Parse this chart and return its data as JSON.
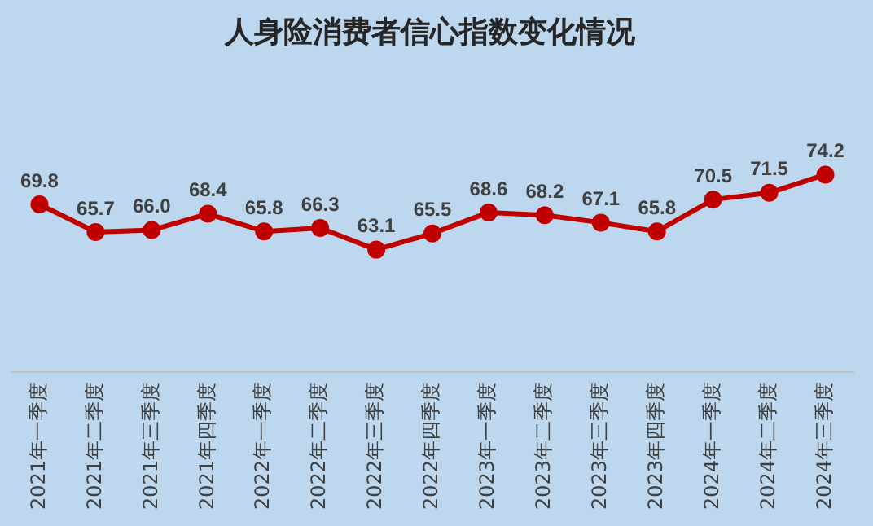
{
  "chart_data": {
    "type": "line",
    "title": "人身险消费者信心指数变化情况",
    "categories": [
      "2021年一季度",
      "2021年二季度",
      "2021年三季度",
      "2021年四季度",
      "2022年一季度",
      "2022年二季度",
      "2022年三季度",
      "2022年四季度",
      "2023年一季度",
      "2023年二季度",
      "2023年三季度",
      "2023年四季度",
      "2024年一季度",
      "2024年二季度",
      "2024年三季度"
    ],
    "values": [
      69.8,
      65.7,
      66.0,
      68.4,
      65.8,
      66.3,
      63.1,
      65.5,
      68.6,
      68.2,
      67.1,
      65.8,
      70.5,
      71.5,
      74.2
    ],
    "value_labels": [
      "69.8",
      "65.7",
      "66.0",
      "68.4",
      "65.8",
      "66.3",
      "63.1",
      "65.5",
      "68.6",
      "68.2",
      "67.1",
      "65.8",
      "70.5",
      "71.5",
      "74.2"
    ],
    "color": "#c00000",
    "marker": "circle",
    "line_style": "solid",
    "grid": false,
    "legend": false
  }
}
